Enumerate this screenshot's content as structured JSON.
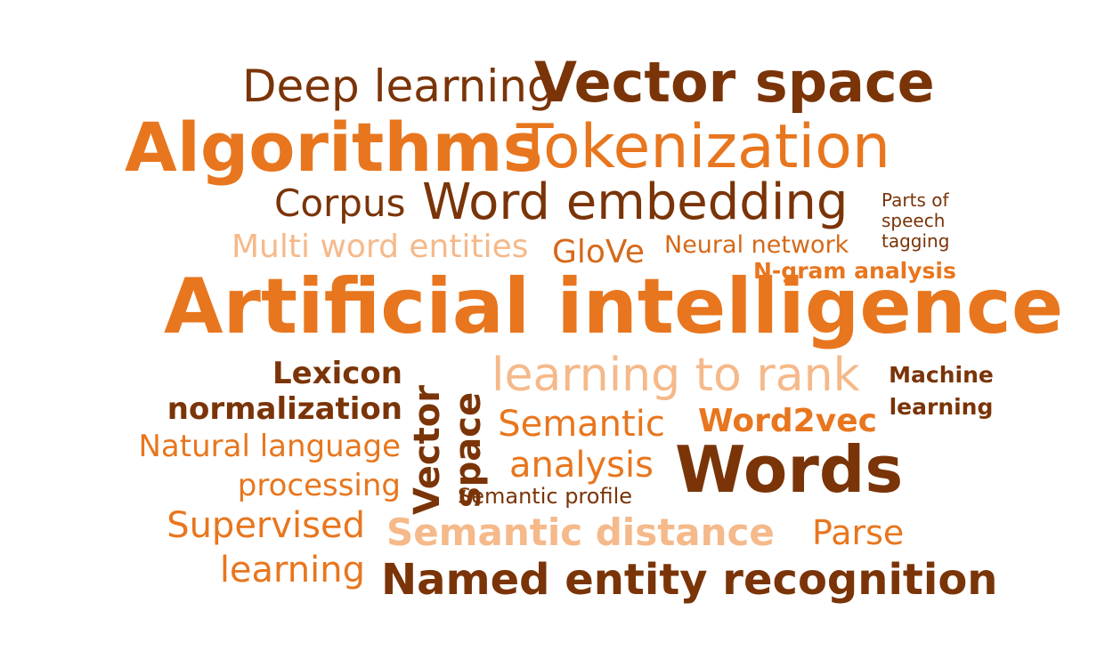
{
  "word_cloud": {
    "palette": {
      "dark_brown": "#7a3408",
      "orange": "#e8761e",
      "light_orange": "#f5b98a"
    },
    "words": {
      "deep_learning": "Deep learning",
      "vector_space_top": "Vector space",
      "algorithms": "Algorithms",
      "tokenization": "Tokenization",
      "corpus": "Corpus",
      "word_embedding": "Word embedding",
      "parts_of_speech_tagging": [
        "Parts of",
        "speech",
        "tagging"
      ],
      "multi_word_entities": "Multi word entities",
      "glove": "GloVe",
      "neural_network": "Neural network",
      "n_gram_analysis": "N-gram analysis",
      "artificial_intelligence": "Artificial intelligence",
      "lexicon_normalization": [
        "Lexicon",
        "normalization"
      ],
      "vector_space_vertical": [
        "Vector",
        "space"
      ],
      "learning_to_rank": "learning to rank",
      "machine_learning": [
        "Machine",
        "learning"
      ],
      "semantic_analysis": [
        "Semantic",
        "analysis"
      ],
      "word2vec": "Word2vec",
      "natural_language_processing": [
        "Natural language",
        "processing"
      ],
      "words": "Words",
      "semantic_profile": "Semantic profile",
      "supervised_learning": [
        "Supervised",
        "learning"
      ],
      "semantic_distance": "Semantic distance",
      "parse": "Parse",
      "named_entity_recognition": "Named entity recognition"
    }
  }
}
